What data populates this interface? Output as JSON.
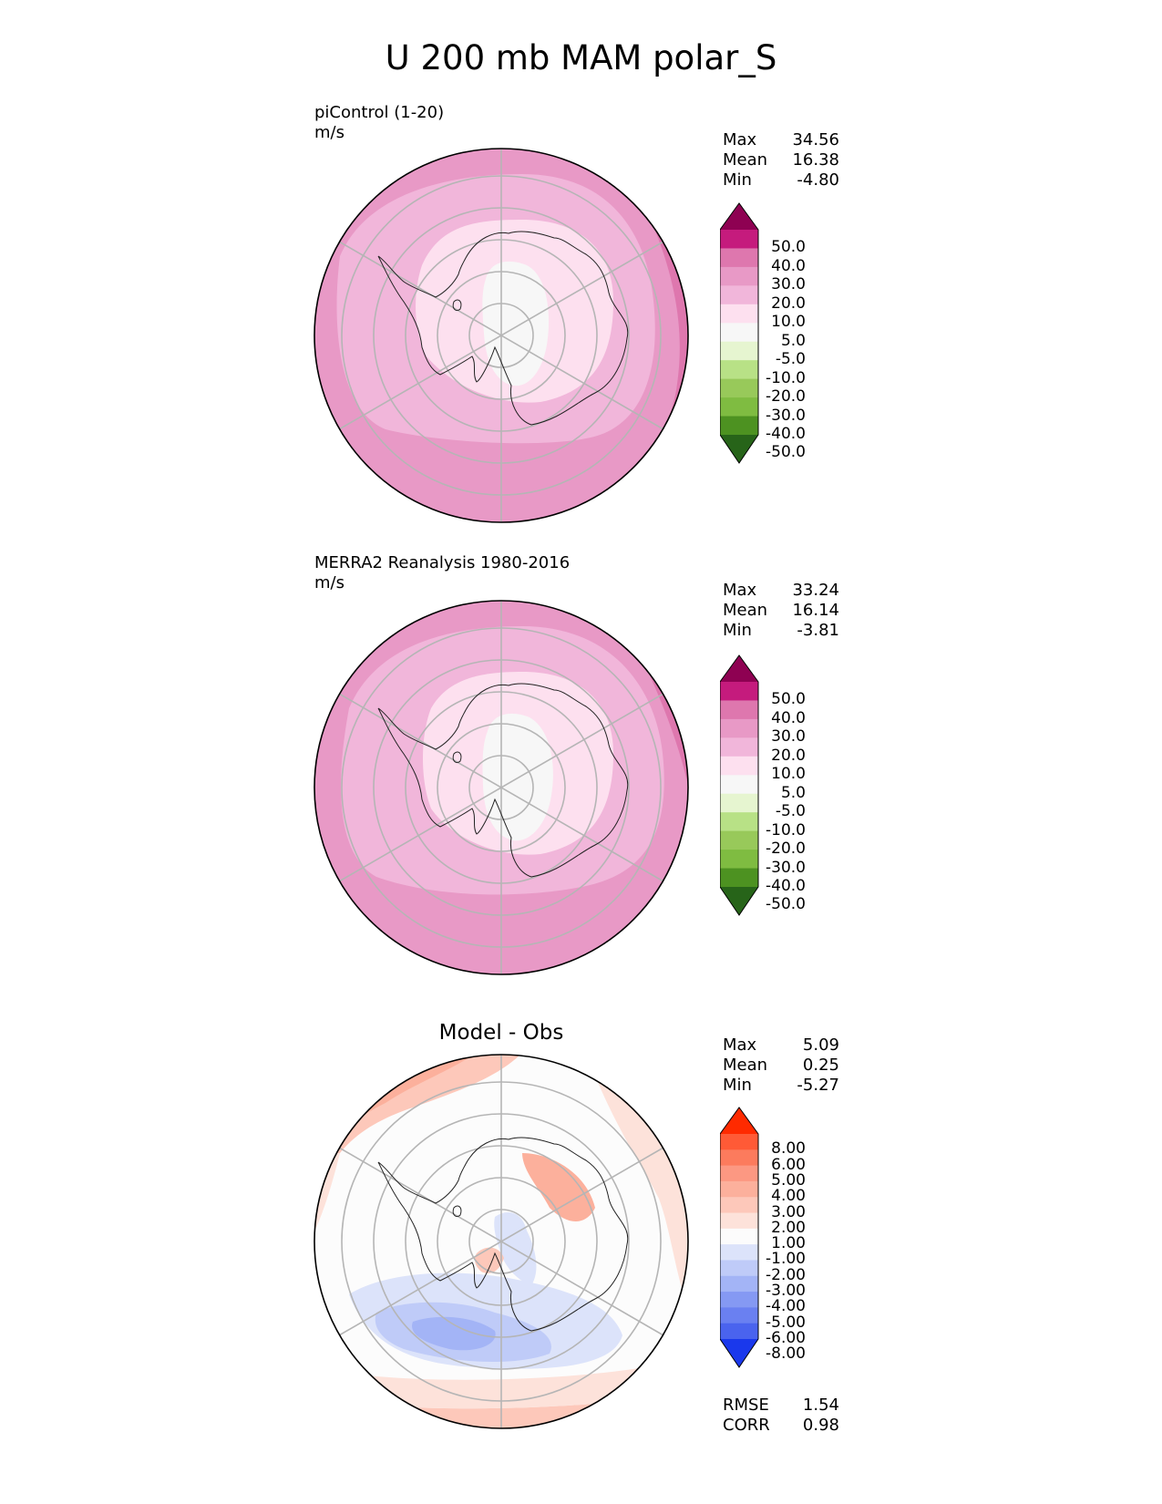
{
  "title": "U 200 mb MAM polar_S",
  "panels": [
    {
      "id": "test",
      "label_line1": "piControl (1-20)",
      "label_line2": "m/s",
      "center_title": "",
      "stats": {
        "max_label": "Max",
        "max": "34.56",
        "mean_label": "Mean",
        "mean": "16.38",
        "min_label": "Min",
        "min": "-4.80"
      },
      "colorbar": {
        "ticks": [
          "50.0",
          "40.0",
          "30.0",
          "20.0",
          "10.0",
          "5.0",
          "-5.0",
          "-10.0",
          "-20.0",
          "-30.0",
          "-40.0",
          "-50.0"
        ],
        "colors": [
          "#8e0152",
          "#c51b7d",
          "#de77ae",
          "#e899c6",
          "#f1b6da",
          "#fde0ef",
          "#f7f7f7",
          "#e6f5d0",
          "#b8e186",
          "#98c95a",
          "#7fbc41",
          "#4d9221",
          "#276419"
        ]
      }
    },
    {
      "id": "ref",
      "label_line1": "MERRA2 Reanalysis 1980-2016",
      "label_line2": "m/s",
      "center_title": "",
      "stats": {
        "max_label": "Max",
        "max": "33.24",
        "mean_label": "Mean",
        "mean": "16.14",
        "min_label": "Min",
        "min": "-3.81"
      },
      "colorbar": {
        "ticks": [
          "50.0",
          "40.0",
          "30.0",
          "20.0",
          "10.0",
          "5.0",
          "-5.0",
          "-10.0",
          "-20.0",
          "-30.0",
          "-40.0",
          "-50.0"
        ],
        "colors": [
          "#8e0152",
          "#c51b7d",
          "#de77ae",
          "#e899c6",
          "#f1b6da",
          "#fde0ef",
          "#f7f7f7",
          "#e6f5d0",
          "#b8e186",
          "#98c95a",
          "#7fbc41",
          "#4d9221",
          "#276419"
        ]
      }
    },
    {
      "id": "diff",
      "label_line1": "",
      "label_line2": "",
      "center_title": "Model - Obs",
      "stats": {
        "max_label": "Max",
        "max": "5.09",
        "mean_label": "Mean",
        "mean": "0.25",
        "min_label": "Min",
        "min": "-5.27"
      },
      "extra": {
        "rmse_label": "RMSE",
        "rmse": "1.54",
        "corr_label": "CORR",
        "corr": "0.98"
      },
      "colorbar": {
        "ticks": [
          "8.00",
          "6.00",
          "5.00",
          "4.00",
          "3.00",
          "2.00",
          "1.00",
          "-1.00",
          "-2.00",
          "-3.00",
          "-4.00",
          "-5.00",
          "-6.00",
          "-8.00"
        ],
        "colors": [
          "#ff2a00",
          "#ff5a36",
          "#fc7b5d",
          "#fc9882",
          "#fcb09c",
          "#fdc8ba",
          "#fde2da",
          "#fcfcfc",
          "#dce3fa",
          "#bfcbf8",
          "#a3b4f6",
          "#8599f3",
          "#6a80f1",
          "#4a63ee",
          "#1a38ec"
        ]
      }
    }
  ]
}
